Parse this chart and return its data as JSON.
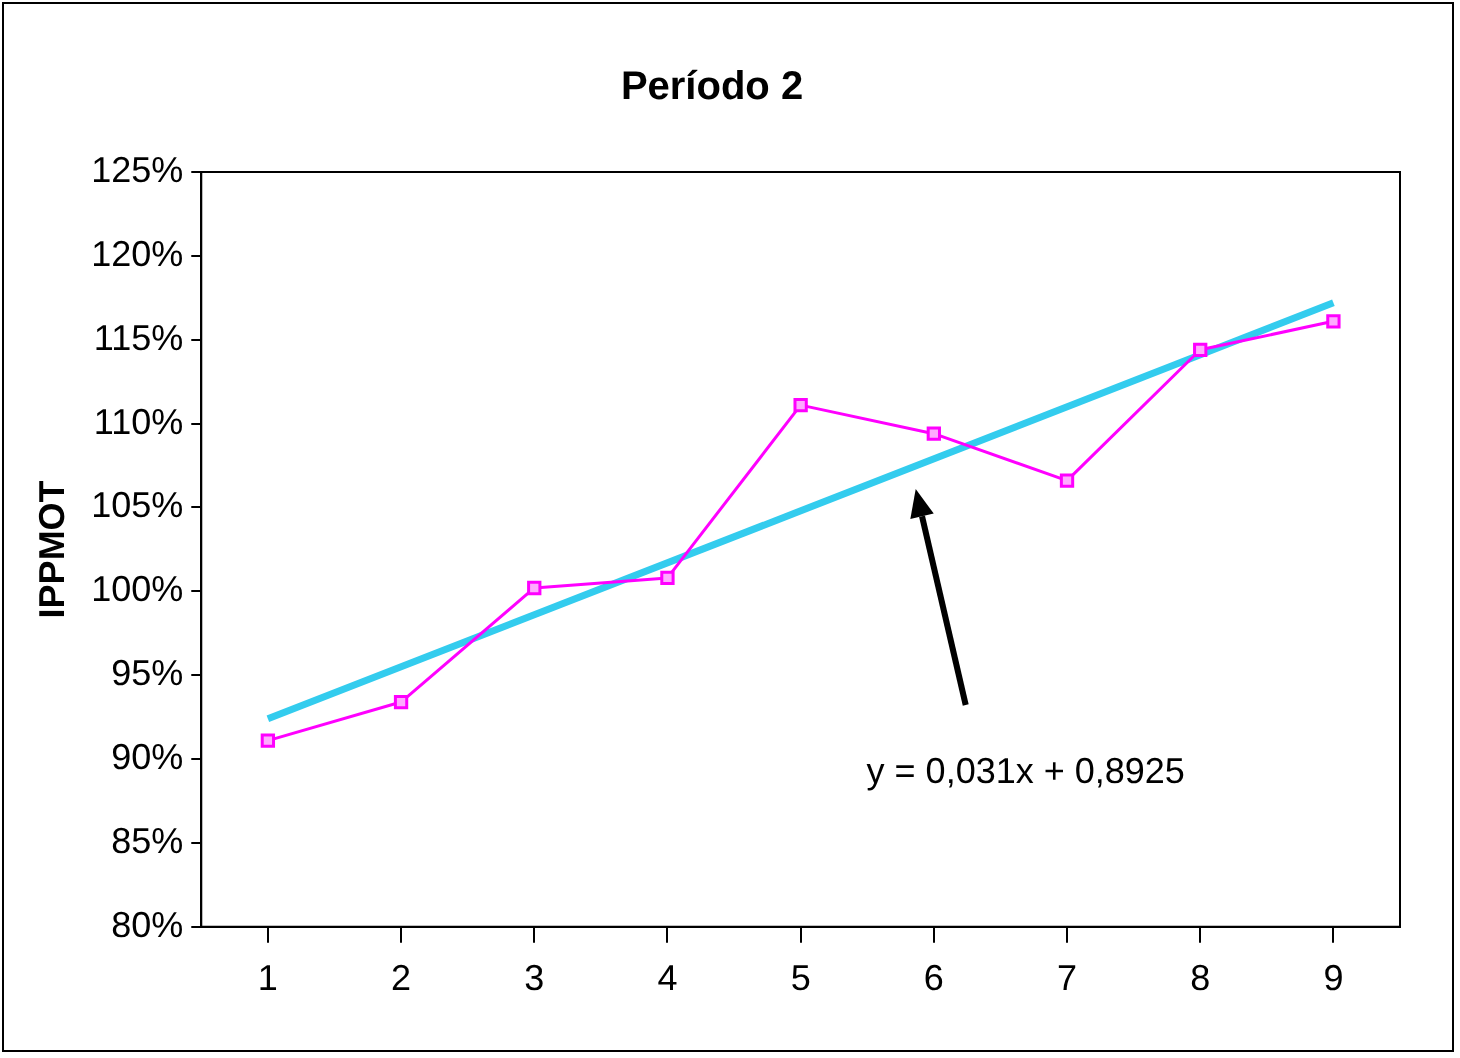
{
  "chart_data": {
    "type": "line",
    "title": "Período 2",
    "ylabel": "IPPMOT",
    "x": [
      1,
      2,
      3,
      4,
      5,
      6,
      7,
      8,
      9
    ],
    "xlim": [
      0.5,
      9.5
    ],
    "xticks": [
      1,
      2,
      3,
      4,
      5,
      6,
      7,
      8,
      9
    ],
    "series": [
      {
        "color": "#ff00ff",
        "values": [
          91.1,
          93.4,
          100.2,
          100.8,
          111.1,
          109.4,
          106.6,
          114.4,
          116.1
        ],
        "marker": "square"
      },
      {
        "type": "line",
        "color": "#33ccee",
        "x": [
          1,
          9
        ],
        "values": [
          92.4,
          117.2
        ],
        "marker": "none"
      }
    ],
    "ylim": [
      80,
      125
    ],
    "yticks": [
      {
        "value": 80,
        "label": "80%"
      },
      {
        "value": 85,
        "label": "85%"
      },
      {
        "value": 90,
        "label": "90%"
      },
      {
        "value": 95,
        "label": "95%"
      },
      {
        "value": 100,
        "label": "100%"
      },
      {
        "value": 105,
        "label": "105%"
      },
      {
        "value": 110,
        "label": "110%"
      },
      {
        "value": 115,
        "label": "115%"
      },
      {
        "value": 120,
        "label": "120%"
      },
      {
        "value": 125,
        "label": "125%"
      }
    ],
    "grid": false,
    "legend": false,
    "annotations": [
      "y = 0,031x + 0,8925"
    ]
  }
}
